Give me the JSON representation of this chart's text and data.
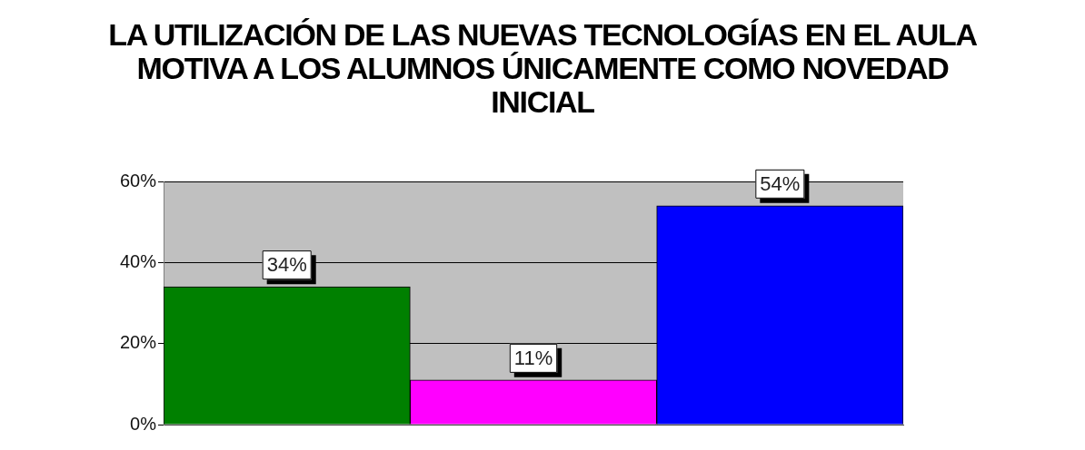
{
  "chart_data": {
    "type": "bar",
    "title": "LA UTILIZACIÓN DE LAS NUEVAS TECNOLOGÍAS EN EL AULA MOTIVA A LOS ALUMNOS ÚNICAMENTE COMO NOVEDAD INICIAL",
    "categories": [
      null,
      null,
      null
    ],
    "values": [
      34,
      11,
      54
    ],
    "colors": [
      "#008000",
      "#ff00ff",
      "#0000ff"
    ],
    "value_labels": [
      "34%",
      "11%",
      "54%"
    ],
    "ylim": [
      0,
      60
    ],
    "yticks": [
      {
        "value": 0,
        "label": "0%"
      },
      {
        "value": 20,
        "label": "20%"
      },
      {
        "value": 40,
        "label": "40%"
      },
      {
        "value": 60,
        "label": "60%"
      }
    ],
    "grid": "y"
  }
}
